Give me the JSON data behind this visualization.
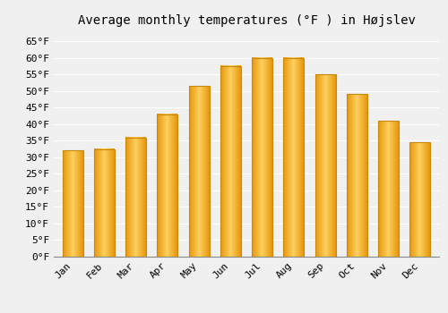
{
  "title": "Average monthly temperatures (°F ) in Højslev",
  "months": [
    "Jan",
    "Feb",
    "Mar",
    "Apr",
    "May",
    "Jun",
    "Jul",
    "Aug",
    "Sep",
    "Oct",
    "Nov",
    "Dec"
  ],
  "values": [
    32,
    32.5,
    36,
    43,
    51.5,
    57.5,
    60,
    60,
    55,
    49,
    41,
    34.5
  ],
  "bar_color": "#FDB827",
  "bar_edge_color": "#C8880A",
  "background_color": "#F0F0F0",
  "grid_color": "#FFFFFF",
  "ylim": [
    0,
    68
  ],
  "yticks": [
    0,
    5,
    10,
    15,
    20,
    25,
    30,
    35,
    40,
    45,
    50,
    55,
    60,
    65
  ],
  "title_fontsize": 10,
  "tick_fontsize": 8,
  "font_family": "monospace"
}
